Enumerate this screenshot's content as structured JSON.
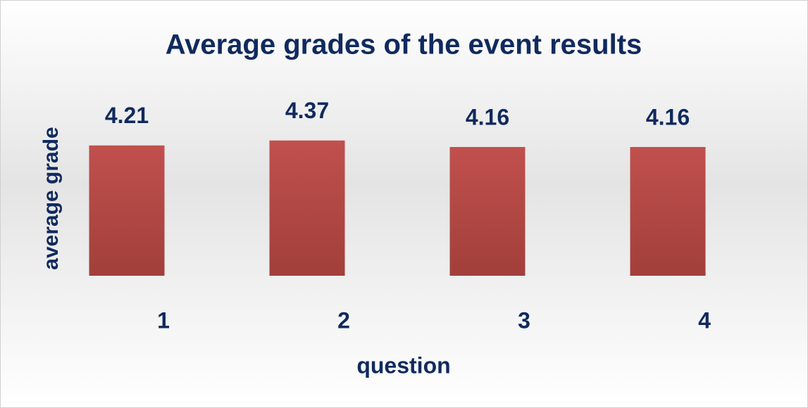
{
  "chart_data": {
    "type": "bar",
    "title": "Average grades of the event results",
    "x_label": "question",
    "y_label": "average grade",
    "categories": [
      "1",
      "2",
      "3",
      "4"
    ],
    "values": [
      4.21,
      4.37,
      4.16,
      4.16
    ],
    "color": "#c0504d",
    "ylim": [
      0,
      5
    ]
  }
}
